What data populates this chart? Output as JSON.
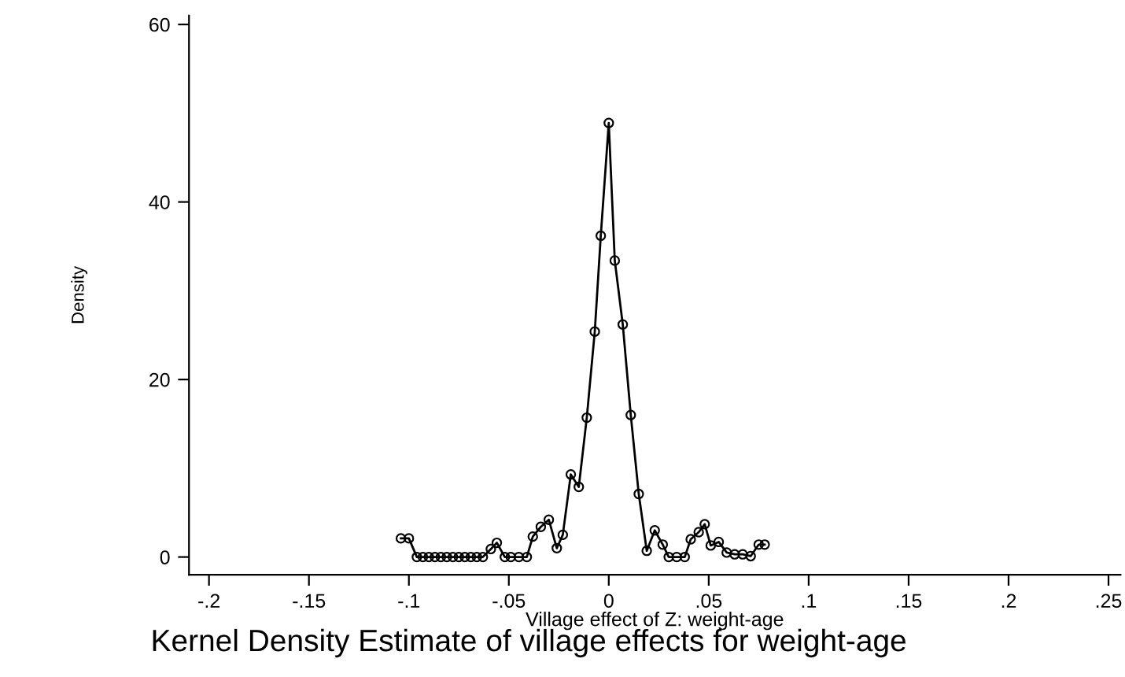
{
  "chart_data": {
    "type": "line",
    "title": "Kernel Density Estimate of village effects for weight-age",
    "xlabel": "Village effect of Z: weight-age",
    "ylabel": "Density",
    "x": [
      -0.104,
      -0.1,
      -0.096,
      -0.093,
      -0.09,
      -0.087,
      -0.084,
      -0.081,
      -0.078,
      -0.075,
      -0.072,
      -0.069,
      -0.066,
      -0.063,
      -0.059,
      -0.056,
      -0.052,
      -0.049,
      -0.045,
      -0.041,
      -0.038,
      -0.034,
      -0.03,
      -0.026,
      -0.023,
      -0.019,
      -0.015,
      -0.011,
      -0.007,
      -0.004,
      0,
      0.003,
      0.007,
      0.011,
      0.015,
      0.019,
      0.023,
      0.027,
      0.03,
      0.034,
      0.038,
      0.041,
      0.045,
      0.048,
      0.051,
      0.055,
      0.059,
      0.063,
      0.067,
      0.071,
      0.075,
      0.078
    ],
    "series": [
      {
        "color": "#000000",
        "values": [
          2.1,
          2.1,
          0,
          0,
          0,
          0,
          0,
          0,
          0,
          0,
          0,
          0,
          0,
          0,
          0.9,
          1.6,
          0,
          0,
          0,
          0,
          2.3,
          3.4,
          4.2,
          1.0,
          2.5,
          9.3,
          7.9,
          15.7,
          25.4,
          36.2,
          48.9,
          33.4,
          26.2,
          16.0,
          7.1,
          0.7,
          3.0,
          1.4,
          0,
          0,
          0,
          2.0,
          2.8,
          3.7,
          1.3,
          1.7,
          0.5,
          0.3,
          0.3,
          0.1,
          1.4,
          1.4
        ]
      }
    ],
    "xlim": [
      -0.21,
      0.256
    ],
    "xticks": [
      {
        "value": -0.2,
        "label": "-.2"
      },
      {
        "value": -0.15,
        "label": "-.15"
      },
      {
        "value": -0.1,
        "label": "-.1"
      },
      {
        "value": -0.05,
        "label": "-.05"
      },
      0,
      {
        "value": 0.05,
        "label": ".05"
      },
      {
        "value": 0.1,
        "label": ".1"
      },
      {
        "value": 0.15,
        "label": ".15"
      },
      {
        "value": 0.2,
        "label": ".2"
      },
      {
        "value": 0.25,
        "label": ".25"
      }
    ],
    "ylim": [
      -2,
      61
    ],
    "yticks": [
      0,
      20,
      40,
      60
    ],
    "marker": "circle",
    "line_style": "solid",
    "grid": false,
    "legend": false
  }
}
